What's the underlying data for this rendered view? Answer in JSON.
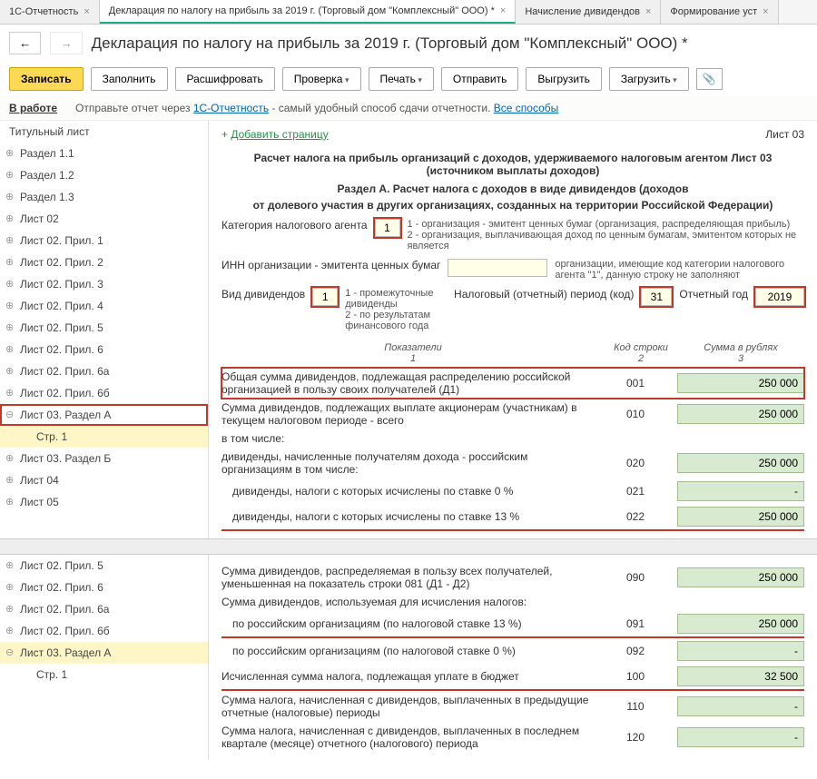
{
  "tabs": [
    {
      "label": "1С-Отчетность",
      "active": false
    },
    {
      "label": "Декларация по налогу на прибыль за 2019 г. (Торговый дом \"Комплексный\" ООО) *",
      "active": true
    },
    {
      "label": "Начисление дивидендов",
      "active": false
    },
    {
      "label": "Формирование уст",
      "active": false
    }
  ],
  "page_title": "Декларация по налогу на прибыль за 2019 г. (Торговый дом \"Комплексный\" ООО) *",
  "toolbar": {
    "save": "Записать",
    "fill": "Заполнить",
    "decode": "Расшифровать",
    "check": "Проверка",
    "print": "Печать",
    "send": "Отправить",
    "export": "Выгрузить",
    "import": "Загрузить"
  },
  "status": {
    "label": "В работе",
    "hint_prefix": "Отправьте отчет через ",
    "hint_link": "1С-Отчетность",
    "hint_suffix": " - самый удобный способ сдачи отчетности. ",
    "all_methods": "Все способы"
  },
  "tree_top": [
    {
      "label": "Титульный лист",
      "cls": "header"
    },
    {
      "label": "Раздел 1.1"
    },
    {
      "label": "Раздел 1.2"
    },
    {
      "label": "Раздел 1.3"
    },
    {
      "label": "Лист 02"
    },
    {
      "label": "Лист 02. Прил. 1"
    },
    {
      "label": "Лист 02. Прил. 2"
    },
    {
      "label": "Лист 02. Прил. 3"
    },
    {
      "label": "Лист 02. Прил. 4"
    },
    {
      "label": "Лист 02. Прил. 5"
    },
    {
      "label": "Лист 02. Прил. 6"
    },
    {
      "label": "Лист 02. Прил. 6a"
    },
    {
      "label": "Лист 02. Прил. 6б"
    },
    {
      "label": "Лист 03. Раздел А",
      "cls": "expanded hl-red"
    },
    {
      "label": "Стр. 1",
      "cls": "child leaf"
    },
    {
      "label": "Лист 03. Раздел Б"
    },
    {
      "label": "Лист 04"
    },
    {
      "label": "Лист 05"
    }
  ],
  "tree_bottom": [
    {
      "label": "Лист 02. Прил. 5"
    },
    {
      "label": "Лист 02. Прил. 6"
    },
    {
      "label": "Лист 02. Прил. 6a"
    },
    {
      "label": "Лист 02. Прил. 6б"
    },
    {
      "label": "Лист 03. Раздел А",
      "cls": "expanded",
      "hl_yellow": true
    },
    {
      "label": "Стр. 1",
      "cls": "child-plain leaf"
    }
  ],
  "content": {
    "add_page": "Добавить страницу",
    "sheet": "Лист 03",
    "heading1": "Расчет налога на прибыль организаций с доходов, удерживаемого налоговым агентом Лист 03 (источником выплаты доходов)",
    "heading2a": "Раздел А. Расчет налога с доходов в виде дивидендов (доходов",
    "heading2b": "от долевого участия в других организациях, созданных на территории Российской Федерации)",
    "cat_label": "Категория налогового агента",
    "cat_value": "1",
    "cat_note1": "1 - организация - эмитент ценных бумаг (организация, распределяющая прибыль)",
    "cat_note2": "2 - организация, выплачивающая доход по ценным бумагам, эмитентом которых не является",
    "inn_label": "ИНН организации - эмитента ценных бумаг",
    "inn_note": "организации, имеющие код категории налогового агента \"1\", данную строку не заполняют",
    "div_type_label": "Вид дивидендов",
    "div_type_value": "1",
    "div_type_note1": "1 - промежуточные дивиденды",
    "div_type_note2": "2 - по результатам финансового года",
    "period_label": "Налоговый (отчетный) период (код)",
    "period_value": "31",
    "year_label": "Отчетный год",
    "year_value": "2019",
    "col_ind": "Показатели",
    "col_ind_num": "1",
    "col_code": "Код строки",
    "col_code_num": "2",
    "col_sum": "Сумма в рублях",
    "col_sum_num": "3",
    "rows_top": [
      {
        "desc": "Общая сумма дивидендов, подлежащая распределению российской организацией в пользу своих получателей (Д1)",
        "code": "001",
        "val": "250 000",
        "hl": true
      },
      {
        "desc": "Сумма дивидендов, подлежащих выплате акционерам (участникам) в текущем налоговом периоде - всего",
        "code": "010",
        "val": "250 000"
      },
      {
        "desc": "в том числе:",
        "code": "",
        "val": "",
        "noval": true
      },
      {
        "desc": "дивиденды, начисленные получателям дохода - российским организациям в том числе:",
        "code": "020",
        "val": "250 000"
      },
      {
        "desc": "дивиденды, налоги с которых исчислены по ставке 0 %",
        "code": "021",
        "val": "-",
        "indent": true
      },
      {
        "desc": "дивиденды, налоги с которых исчислены по ставке 13 %",
        "code": "022",
        "val": "250 000",
        "indent": true,
        "underline": true
      }
    ],
    "rows_bottom": [
      {
        "desc": "Сумма дивидендов, распределяемая в пользу всех получателей, уменьшенная на показатель строки 081 (Д1 - Д2)",
        "code": "090",
        "val": "250 000"
      },
      {
        "desc": "Сумма дивидендов, используемая для исчисления налогов:",
        "code": "",
        "val": "",
        "noval": true
      },
      {
        "desc": "по российским организациям (по налоговой ставке 13 %)",
        "code": "091",
        "val": "250 000",
        "indent": true,
        "underline": true
      },
      {
        "desc": "по российским организациям (по налоговой ставке 0 %)",
        "code": "092",
        "val": "-",
        "indent": true
      },
      {
        "desc": "Исчисленная сумма налога, подлежащая уплате в бюджет",
        "code": "100",
        "val": "32 500",
        "underline": true
      },
      {
        "desc": "Сумма налога, начисленная с дивидендов, выплаченных в предыдущие отчетные (налоговые) периоды",
        "code": "110",
        "val": "-"
      },
      {
        "desc": "Сумма налога, начисленная с дивидендов, выплаченных в последнем квартале (месяце) отчетного (налогового) периода",
        "code": "120",
        "val": "-"
      }
    ]
  }
}
